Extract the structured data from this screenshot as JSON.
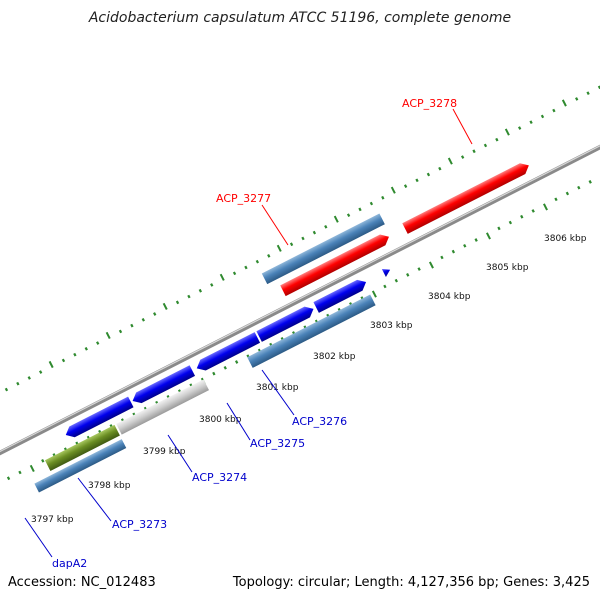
{
  "title": "Acidobacterium capsulatum ATCC 51196, complete genome",
  "accession": "Accession: NC_012483",
  "summary": "Topology: circular; Length: 4,127,356 bp; Genes: 3,425",
  "colors": {
    "backbone": "#909090",
    "tick": "#2f8a2f",
    "forward_highlight": "#ff0000",
    "forward_cds": "#0000ee",
    "reverse_cds": "#4a82b8",
    "rna": "#cfcfcf",
    "other": "#6b8e23",
    "forward_label": "#ff0000",
    "reverse_label": "#0000cc"
  },
  "scale_labels": [
    "3797 kbp",
    "3798 kbp",
    "3799 kbp",
    "3800 kbp",
    "3801 kbp",
    "3802 kbp",
    "3803 kbp",
    "3804 kbp",
    "3805 kbp",
    "3806 kbp"
  ],
  "gene_labels": [
    {
      "text": "ACP_3278",
      "strand": "forward"
    },
    {
      "text": "ACP_3277",
      "strand": "forward"
    },
    {
      "text": "ACP_3276",
      "strand": "reverse"
    },
    {
      "text": "ACP_3275",
      "strand": "reverse"
    },
    {
      "text": "ACP_3274",
      "strand": "reverse"
    },
    {
      "text": "ACP_3273",
      "strand": "reverse"
    },
    {
      "text": "dapA2",
      "strand": "reverse"
    }
  ]
}
